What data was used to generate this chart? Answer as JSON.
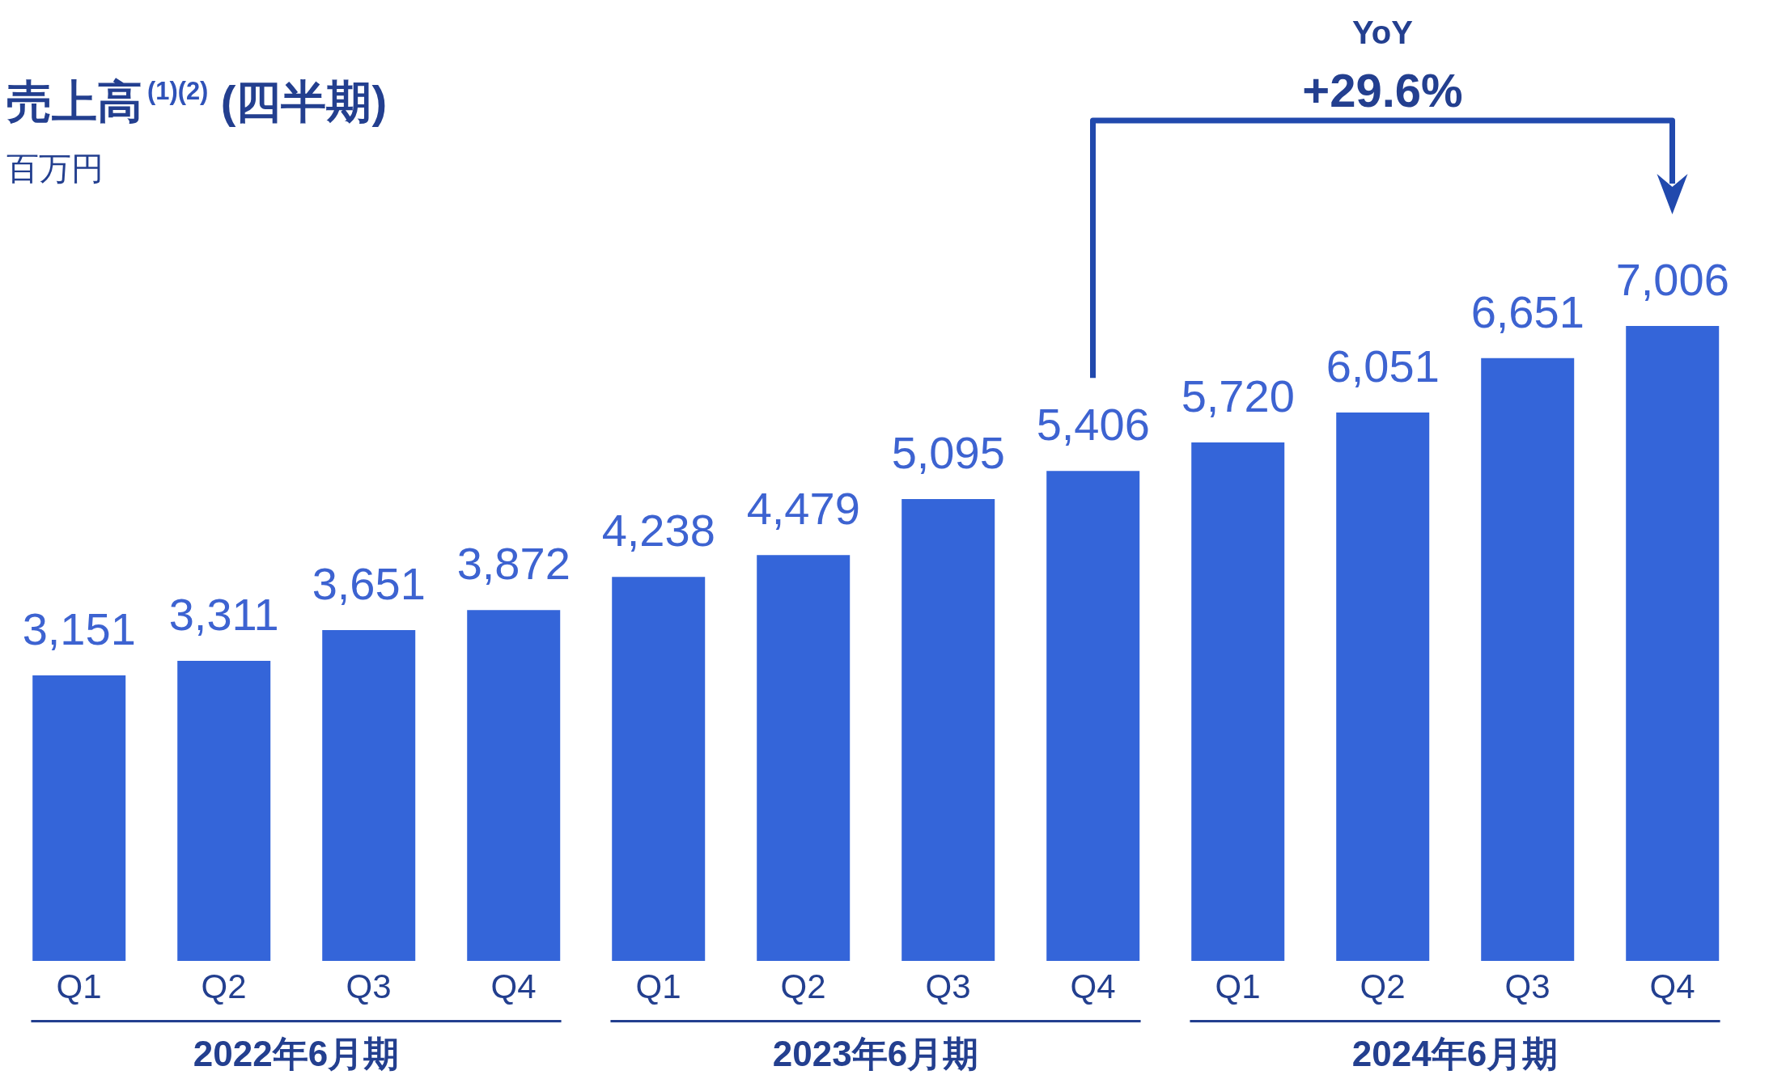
{
  "chart_data": {
    "type": "bar",
    "title": "売上高$^{(1)(2)}$ (四半期)",
    "subtitle": "百万円",
    "categories": [
      "Q1",
      "Q2",
      "Q3",
      "Q4",
      "Q1",
      "Q2",
      "Q3",
      "Q4",
      "Q1",
      "Q2",
      "Q3",
      "Q4"
    ],
    "values": [
      3151,
      3311,
      3651,
      3872,
      4238,
      4479,
      5095,
      5406,
      5720,
      6051,
      6651,
      7006
    ],
    "value_labels": [
      "3,151",
      "3,311",
      "3,651",
      "3,872",
      "4,238",
      "4,479",
      "5,095",
      "5,406",
      "5,720",
      "6,051",
      "6,651",
      "7,006"
    ],
    "color": "#3465d9",
    "annotations": [
      "YoY",
      "+29.6%",
      "2022年6月期",
      "2023年6月期",
      "2024年6月期"
    ]
  }
}
